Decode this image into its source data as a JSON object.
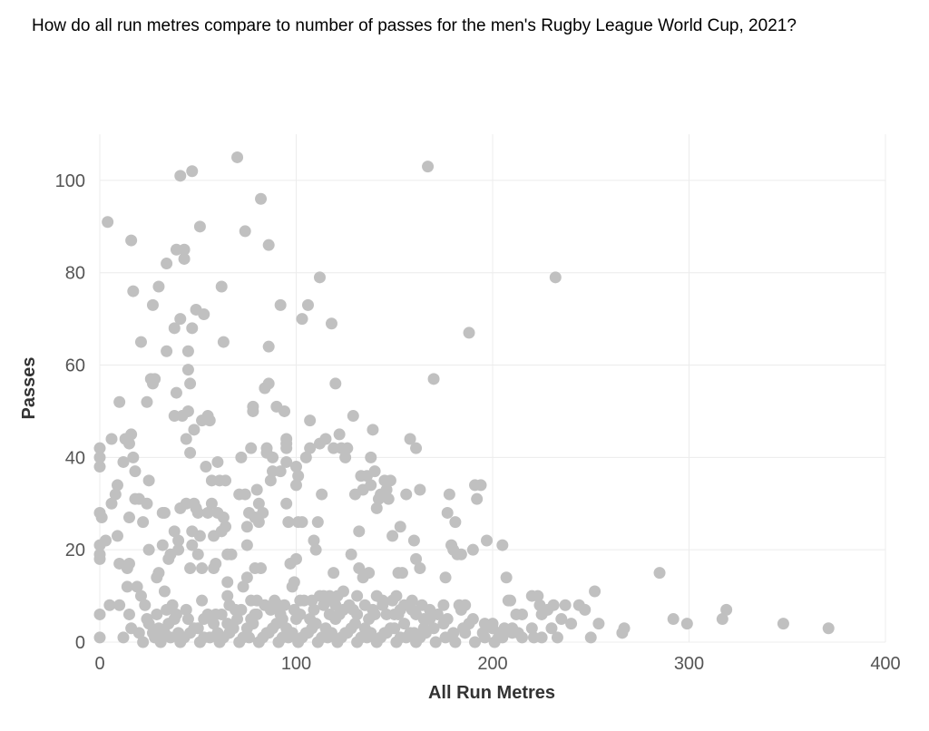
{
  "chart_data": {
    "type": "scatter",
    "title": "How do all run metres compare to number of passes for the men's Rugby League World Cup, 2021?",
    "xlabel": "All Run Metres",
    "ylabel": "Passes",
    "xlim": [
      0,
      400
    ],
    "ylim": [
      0,
      110
    ],
    "xticks": [
      0,
      100,
      200,
      300,
      400
    ],
    "yticks": [
      0,
      20,
      40,
      60,
      80,
      100
    ],
    "grid": true,
    "point_color": "#c0c0c0",
    "points": [
      [
        0,
        42
      ],
      [
        0,
        40
      ],
      [
        0,
        38
      ],
      [
        0,
        28
      ],
      [
        0,
        21
      ],
      [
        0,
        19
      ],
      [
        0,
        18
      ],
      [
        0,
        6
      ],
      [
        0,
        1
      ],
      [
        1,
        27
      ],
      [
        4,
        91
      ],
      [
        3,
        22
      ],
      [
        5,
        8
      ],
      [
        6,
        44
      ],
      [
        6,
        30
      ],
      [
        8,
        32
      ],
      [
        9,
        34
      ],
      [
        9,
        23
      ],
      [
        10,
        52
      ],
      [
        10,
        17
      ],
      [
        10,
        8
      ],
      [
        12,
        39
      ],
      [
        13,
        44
      ],
      [
        14,
        16
      ],
      [
        14,
        12
      ],
      [
        15,
        27
      ],
      [
        15,
        43
      ],
      [
        15,
        17
      ],
      [
        15,
        6
      ],
      [
        16,
        87
      ],
      [
        16,
        45
      ],
      [
        17,
        40
      ],
      [
        17,
        76
      ],
      [
        18,
        37
      ],
      [
        18,
        31
      ],
      [
        19,
        12
      ],
      [
        20,
        31
      ],
      [
        21,
        65
      ],
      [
        21,
        10
      ],
      [
        22,
        26
      ],
      [
        23,
        8
      ],
      [
        24,
        30
      ],
      [
        24,
        52
      ],
      [
        25,
        35
      ],
      [
        25,
        20
      ],
      [
        26,
        57
      ],
      [
        27,
        73
      ],
      [
        27,
        56
      ],
      [
        28,
        57
      ],
      [
        29,
        14
      ],
      [
        30,
        77
      ],
      [
        30,
        15
      ],
      [
        32,
        28
      ],
      [
        32,
        21
      ],
      [
        33,
        28
      ],
      [
        33,
        11
      ],
      [
        34,
        82
      ],
      [
        34,
        63
      ],
      [
        35,
        18
      ],
      [
        36,
        19
      ],
      [
        37,
        8
      ],
      [
        38,
        68
      ],
      [
        38,
        49
      ],
      [
        38,
        24
      ],
      [
        39,
        85
      ],
      [
        39,
        54
      ],
      [
        40,
        22
      ],
      [
        40,
        20
      ],
      [
        41,
        101
      ],
      [
        41,
        70
      ],
      [
        41,
        29
      ],
      [
        42,
        49
      ],
      [
        43,
        85
      ],
      [
        43,
        83
      ],
      [
        44,
        44
      ],
      [
        44,
        30
      ],
      [
        45,
        50
      ],
      [
        45,
        63
      ],
      [
        45,
        59
      ],
      [
        46,
        56
      ],
      [
        46,
        41
      ],
      [
        46,
        16
      ],
      [
        47,
        102
      ],
      [
        47,
        68
      ],
      [
        47,
        24
      ],
      [
        47,
        21
      ],
      [
        48,
        46
      ],
      [
        48,
        30
      ],
      [
        49,
        72
      ],
      [
        49,
        29
      ],
      [
        50,
        28
      ],
      [
        50,
        19
      ],
      [
        51,
        90
      ],
      [
        51,
        23
      ],
      [
        52,
        48
      ],
      [
        52,
        16
      ],
      [
        53,
        71
      ],
      [
        54,
        38
      ],
      [
        55,
        49
      ],
      [
        55,
        28
      ],
      [
        56,
        48
      ],
      [
        57,
        30
      ],
      [
        57,
        35
      ],
      [
        58,
        16
      ],
      [
        58,
        23
      ],
      [
        59,
        17
      ],
      [
        60,
        39
      ],
      [
        60,
        28
      ],
      [
        61,
        35
      ],
      [
        62,
        77
      ],
      [
        62,
        24
      ],
      [
        63,
        65
      ],
      [
        63,
        27
      ],
      [
        64,
        25
      ],
      [
        64,
        35
      ],
      [
        65,
        19
      ],
      [
        65,
        13
      ],
      [
        65,
        10
      ],
      [
        67,
        19
      ],
      [
        70,
        105
      ],
      [
        71,
        32
      ],
      [
        72,
        40
      ],
      [
        73,
        12
      ],
      [
        74,
        89
      ],
      [
        74,
        32
      ],
      [
        75,
        25
      ],
      [
        75,
        21
      ],
      [
        75,
        14
      ],
      [
        76,
        28
      ],
      [
        77,
        42
      ],
      [
        77,
        9
      ],
      [
        78,
        51
      ],
      [
        78,
        50
      ],
      [
        79,
        16
      ],
      [
        79,
        27
      ],
      [
        80,
        33
      ],
      [
        80,
        9
      ],
      [
        81,
        30
      ],
      [
        81,
        26
      ],
      [
        82,
        96
      ],
      [
        82,
        16
      ],
      [
        83,
        28
      ],
      [
        84,
        55
      ],
      [
        85,
        42
      ],
      [
        85,
        41
      ],
      [
        86,
        86
      ],
      [
        86,
        64
      ],
      [
        86,
        56
      ],
      [
        87,
        35
      ],
      [
        88,
        40
      ],
      [
        88,
        37
      ],
      [
        89,
        9
      ],
      [
        90,
        51
      ],
      [
        91,
        8
      ],
      [
        92,
        73
      ],
      [
        92,
        37
      ],
      [
        93,
        5
      ],
      [
        94,
        50
      ],
      [
        95,
        44
      ],
      [
        95,
        43
      ],
      [
        95,
        42
      ],
      [
        95,
        39
      ],
      [
        95,
        30
      ],
      [
        96,
        26
      ],
      [
        97,
        17
      ],
      [
        98,
        12
      ],
      [
        99,
        13
      ],
      [
        100,
        38
      ],
      [
        100,
        34
      ],
      [
        100,
        18
      ],
      [
        101,
        36
      ],
      [
        101,
        26
      ],
      [
        102,
        9
      ],
      [
        103,
        70
      ],
      [
        103,
        26
      ],
      [
        104,
        9
      ],
      [
        105,
        40
      ],
      [
        106,
        73
      ],
      [
        107,
        48
      ],
      [
        107,
        42
      ],
      [
        108,
        9
      ],
      [
        109,
        22
      ],
      [
        110,
        20
      ],
      [
        111,
        26
      ],
      [
        112,
        79
      ],
      [
        112,
        43
      ],
      [
        112,
        10
      ],
      [
        113,
        32
      ],
      [
        114,
        10
      ],
      [
        115,
        44
      ],
      [
        116,
        9
      ],
      [
        117,
        10
      ],
      [
        118,
        69
      ],
      [
        119,
        42
      ],
      [
        119,
        15
      ],
      [
        120,
        56
      ],
      [
        120,
        8
      ],
      [
        121,
        10
      ],
      [
        122,
        45
      ],
      [
        123,
        42
      ],
      [
        124,
        11
      ],
      [
        125,
        40
      ],
      [
        126,
        42
      ],
      [
        127,
        8
      ],
      [
        128,
        19
      ],
      [
        129,
        49
      ],
      [
        130,
        32
      ],
      [
        131,
        10
      ],
      [
        132,
        24
      ],
      [
        132,
        16
      ],
      [
        133,
        36
      ],
      [
        134,
        14
      ],
      [
        134,
        33
      ],
      [
        135,
        8
      ],
      [
        136,
        36
      ],
      [
        137,
        15
      ],
      [
        138,
        40
      ],
      [
        138,
        34
      ],
      [
        139,
        46
      ],
      [
        140,
        37
      ],
      [
        141,
        10
      ],
      [
        141,
        29
      ],
      [
        142,
        31
      ],
      [
        143,
        32
      ],
      [
        144,
        9
      ],
      [
        145,
        35
      ],
      [
        146,
        33
      ],
      [
        147,
        31
      ],
      [
        148,
        35
      ],
      [
        149,
        23
      ],
      [
        149,
        9
      ],
      [
        150,
        6
      ],
      [
        151,
        10
      ],
      [
        152,
        15
      ],
      [
        153,
        25
      ],
      [
        154,
        15
      ],
      [
        155,
        8
      ],
      [
        156,
        32
      ],
      [
        158,
        44
      ],
      [
        159,
        9
      ],
      [
        160,
        22
      ],
      [
        161,
        18
      ],
      [
        161,
        42
      ],
      [
        163,
        16
      ],
      [
        163,
        33
      ],
      [
        164,
        8
      ],
      [
        165,
        3
      ],
      [
        167,
        103
      ],
      [
        168,
        5
      ],
      [
        170,
        57
      ],
      [
        172,
        6
      ],
      [
        175,
        8
      ],
      [
        176,
        14
      ],
      [
        177,
        28
      ],
      [
        178,
        32
      ],
      [
        179,
        21
      ],
      [
        180,
        20
      ],
      [
        181,
        26
      ],
      [
        182,
        19
      ],
      [
        183,
        8
      ],
      [
        184,
        19
      ],
      [
        186,
        8
      ],
      [
        188,
        67
      ],
      [
        188,
        4
      ],
      [
        190,
        20
      ],
      [
        191,
        34
      ],
      [
        192,
        31
      ],
      [
        194,
        34
      ],
      [
        196,
        4
      ],
      [
        197,
        22
      ],
      [
        200,
        4
      ],
      [
        203,
        1
      ],
      [
        204,
        2
      ],
      [
        205,
        21
      ],
      [
        207,
        14
      ],
      [
        208,
        9
      ],
      [
        209,
        9
      ],
      [
        210,
        3
      ],
      [
        212,
        6
      ],
      [
        213,
        2
      ],
      [
        215,
        6
      ],
      [
        220,
        10
      ],
      [
        221,
        1
      ],
      [
        223,
        10
      ],
      [
        224,
        8
      ],
      [
        225,
        6
      ],
      [
        228,
        7
      ],
      [
        230,
        3
      ],
      [
        231,
        8
      ],
      [
        232,
        79
      ],
      [
        233,
        1
      ],
      [
        235,
        5
      ],
      [
        237,
        8
      ],
      [
        240,
        4
      ],
      [
        244,
        8
      ],
      [
        247,
        7
      ],
      [
        250,
        1
      ],
      [
        252,
        11
      ],
      [
        254,
        4
      ],
      [
        266,
        2
      ],
      [
        267,
        3
      ],
      [
        285,
        15
      ],
      [
        292,
        5
      ],
      [
        299,
        4
      ],
      [
        317,
        5
      ],
      [
        319,
        7
      ],
      [
        348,
        4
      ],
      [
        371,
        3
      ],
      [
        30,
        3
      ],
      [
        35,
        4
      ],
      [
        40,
        2
      ],
      [
        45,
        5
      ],
      [
        50,
        3
      ],
      [
        55,
        6
      ],
      [
        60,
        2
      ],
      [
        65,
        4
      ],
      [
        70,
        5
      ],
      [
        75,
        3
      ],
      [
        80,
        6
      ],
      [
        85,
        2
      ],
      [
        90,
        4
      ],
      [
        95,
        3
      ],
      [
        100,
        5
      ],
      [
        105,
        2
      ],
      [
        110,
        4
      ],
      [
        115,
        3
      ],
      [
        120,
        5
      ],
      [
        125,
        2
      ],
      [
        130,
        4
      ],
      [
        135,
        3
      ],
      [
        140,
        6
      ],
      [
        145,
        2
      ],
      [
        150,
        3
      ],
      [
        155,
        4
      ],
      [
        160,
        2
      ],
      [
        165,
        5
      ],
      [
        170,
        3
      ],
      [
        175,
        4
      ],
      [
        180,
        2
      ],
      [
        185,
        3
      ],
      [
        190,
        5
      ],
      [
        195,
        2
      ],
      [
        200,
        3
      ],
      [
        205,
        1
      ],
      [
        210,
        2
      ],
      [
        215,
        1
      ],
      [
        220,
        3
      ],
      [
        225,
        1
      ],
      [
        20,
        2
      ],
      [
        25,
        4
      ],
      [
        28,
        1
      ],
      [
        33,
        2
      ],
      [
        38,
        5
      ],
      [
        43,
        1
      ],
      [
        48,
        3
      ],
      [
        53,
        1
      ],
      [
        58,
        4
      ],
      [
        63,
        1
      ],
      [
        68,
        3
      ],
      [
        73,
        1
      ],
      [
        78,
        4
      ],
      [
        83,
        1
      ],
      [
        88,
        3
      ],
      [
        93,
        1
      ],
      [
        98,
        2
      ],
      [
        103,
        1
      ],
      [
        108,
        3
      ],
      [
        113,
        1
      ],
      [
        118,
        2
      ],
      [
        123,
        1
      ],
      [
        128,
        3
      ],
      [
        133,
        1
      ],
      [
        138,
        2
      ],
      [
        143,
        1
      ],
      [
        148,
        3
      ],
      [
        153,
        1
      ],
      [
        158,
        2
      ],
      [
        163,
        1
      ],
      [
        12,
        1
      ],
      [
        16,
        3
      ],
      [
        22,
        0
      ],
      [
        27,
        2
      ],
      [
        31,
        0
      ],
      [
        36,
        1
      ],
      [
        41,
        0
      ],
      [
        46,
        2
      ],
      [
        51,
        0
      ],
      [
        56,
        1
      ],
      [
        61,
        0
      ],
      [
        66,
        2
      ],
      [
        71,
        0
      ],
      [
        76,
        1
      ],
      [
        81,
        0
      ],
      [
        86,
        2
      ],
      [
        91,
        0
      ],
      [
        96,
        1
      ],
      [
        101,
        0
      ],
      [
        106,
        2
      ],
      [
        111,
        0
      ],
      [
        116,
        1
      ],
      [
        121,
        0
      ],
      [
        126,
        2
      ],
      [
        131,
        0
      ],
      [
        136,
        1
      ],
      [
        141,
        0
      ],
      [
        146,
        2
      ],
      [
        151,
        0
      ],
      [
        156,
        1
      ],
      [
        161,
        0
      ],
      [
        166,
        2
      ],
      [
        171,
        0
      ],
      [
        176,
        1
      ],
      [
        181,
        0
      ],
      [
        186,
        2
      ],
      [
        191,
        0
      ],
      [
        196,
        1
      ],
      [
        201,
        0
      ],
      [
        206,
        3
      ],
      [
        44,
        7
      ],
      [
        52,
        9
      ],
      [
        59,
        6
      ],
      [
        66,
        8
      ],
      [
        72,
        7
      ],
      [
        79,
        6
      ],
      [
        87,
        7
      ],
      [
        94,
        8
      ],
      [
        102,
        6
      ],
      [
        109,
        7
      ],
      [
        117,
        6
      ],
      [
        124,
        7
      ],
      [
        131,
        6
      ],
      [
        139,
        7
      ],
      [
        146,
        6
      ],
      [
        153,
        7
      ],
      [
        161,
        6
      ],
      [
        168,
        7
      ],
      [
        177,
        5
      ],
      [
        184,
        7
      ],
      [
        24,
        5
      ],
      [
        29,
        6
      ],
      [
        34,
        7
      ],
      [
        39,
        6
      ],
      [
        53,
        5
      ],
      [
        62,
        6
      ],
      [
        69,
        7
      ],
      [
        77,
        5
      ],
      [
        84,
        8
      ],
      [
        92,
        6
      ],
      [
        99,
        7
      ],
      [
        107,
        5
      ],
      [
        114,
        8
      ],
      [
        122,
        6
      ],
      [
        129,
        7
      ],
      [
        137,
        5
      ],
      [
        144,
        8
      ],
      [
        152,
        6
      ],
      [
        159,
        7
      ],
      [
        167,
        5
      ]
    ]
  }
}
